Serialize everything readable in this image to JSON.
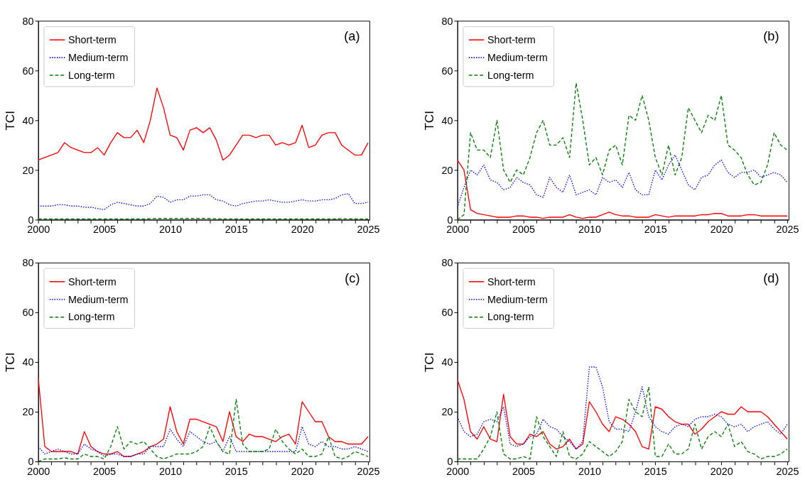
{
  "chart_data": [
    {
      "type": "line",
      "ylabel": "TCI",
      "annotations": [
        "(a)"
      ],
      "legend": "top left",
      "grid": false,
      "x": [
        2000,
        2000.5,
        2001,
        2001.5,
        2002,
        2002.5,
        2003,
        2003.5,
        2004,
        2004.5,
        2005,
        2005.5,
        2006,
        2006.5,
        2007,
        2007.5,
        2008,
        2008.5,
        2009,
        2009.5,
        2010,
        2010.5,
        2011,
        2011.5,
        2012,
        2012.5,
        2013,
        2013.5,
        2014,
        2014.5,
        2015,
        2015.5,
        2016,
        2016.5,
        2017,
        2017.5,
        2018,
        2018.5,
        2019,
        2019.5,
        2020,
        2020.5,
        2021,
        2021.5,
        2022,
        2022.5,
        2023,
        2023.5,
        2024,
        2024.5,
        2025
      ],
      "xlim": [
        2000,
        2025.1
      ],
      "xticks": [
        2000,
        {
          "value": 2001,
          "label": null
        },
        {
          "value": 2002,
          "label": null
        },
        {
          "value": 2003,
          "label": null
        },
        {
          "value": 2004,
          "label": null
        },
        2005,
        {
          "value": 2006,
          "label": null
        },
        {
          "value": 2007,
          "label": null
        },
        {
          "value": 2008,
          "label": null
        },
        {
          "value": 2009,
          "label": null
        },
        2010,
        {
          "value": 2011,
          "label": null
        },
        {
          "value": 2012,
          "label": null
        },
        {
          "value": 2013,
          "label": null
        },
        {
          "value": 2014,
          "label": null
        },
        2015,
        {
          "value": 2016,
          "label": null
        },
        {
          "value": 2017,
          "label": null
        },
        {
          "value": 2018,
          "label": null
        },
        {
          "value": 2019,
          "label": null
        },
        2020,
        {
          "value": 2021,
          "label": null
        },
        {
          "value": 2022,
          "label": null
        },
        {
          "value": 2023,
          "label": null
        },
        {
          "value": 2024,
          "label": null
        },
        2025
      ],
      "ylim": [
        0,
        80
      ],
      "yticks": [
        0,
        20,
        40,
        60,
        80
      ],
      "series": [
        {
          "name": "Short-term",
          "color": "#ff0000",
          "line_style": "solid",
          "values": [
            24,
            25,
            26,
            27,
            31,
            29,
            28,
            27,
            27,
            29,
            26,
            31,
            35,
            33,
            33,
            36,
            31,
            40,
            53,
            45,
            34,
            33,
            28,
            36,
            37,
            35,
            37,
            32,
            24,
            26,
            30,
            34,
            34,
            33,
            34,
            34,
            30,
            31,
            30,
            31,
            38,
            29,
            30,
            34,
            35,
            35,
            30,
            28,
            26,
            26,
            31
          ]
        },
        {
          "name": "Medium-term",
          "color": "#0000ff",
          "line_style": "dotted",
          "values": [
            5.5,
            5.5,
            5.5,
            6,
            6,
            5.5,
            5.5,
            5,
            5,
            4.5,
            4,
            6,
            7,
            6.5,
            6,
            5.5,
            5.5,
            6.5,
            9.5,
            9,
            7,
            8,
            8,
            9.5,
            9.5,
            10,
            10,
            8,
            7.5,
            6,
            5.5,
            6.5,
            7,
            7.5,
            7.5,
            8,
            7.5,
            7,
            7,
            7.5,
            8,
            7.5,
            7.5,
            8,
            8,
            8.5,
            10,
            10.5,
            6.5,
            6.5,
            7
          ]
        },
        {
          "name": "Long-term",
          "color": "#008000",
          "line_style": "dashed",
          "values": [
            0.3,
            0.3,
            0.3,
            0.3,
            0.3,
            0.3,
            0.3,
            0.3,
            0.3,
            0.3,
            0.3,
            0.3,
            0.3,
            0.3,
            0.3,
            0.3,
            0.3,
            0.4,
            0.5,
            0.5,
            0.5,
            0.5,
            0.5,
            0.5,
            0.5,
            0.5,
            0.5,
            0.4,
            0.3,
            0.3,
            0.3,
            0.3,
            0.3,
            0.3,
            0.3,
            0.3,
            0.3,
            0.3,
            0.3,
            0.3,
            0.3,
            0.3,
            0.3,
            0.3,
            0.3,
            0.3,
            0.4,
            0.4,
            0.3,
            0.3,
            0.3
          ]
        }
      ]
    },
    {
      "type": "line",
      "ylabel": "TCI",
      "annotations": [
        "(b)"
      ],
      "legend": "top left",
      "grid": false,
      "x": [
        2000,
        2000.5,
        2001,
        2001.5,
        2002,
        2002.5,
        2003,
        2003.5,
        2004,
        2004.5,
        2005,
        2005.5,
        2006,
        2006.5,
        2007,
        2007.5,
        2008,
        2008.5,
        2009,
        2009.5,
        2010,
        2010.5,
        2011,
        2011.5,
        2012,
        2012.5,
        2013,
        2013.5,
        2014,
        2014.5,
        2015,
        2015.5,
        2016,
        2016.5,
        2017,
        2017.5,
        2018,
        2018.5,
        2019,
        2019.5,
        2020,
        2020.5,
        2021,
        2021.5,
        2022,
        2022.5,
        2023,
        2023.5,
        2024,
        2024.5,
        2025
      ],
      "xlim": [
        2000,
        2025.1
      ],
      "xticks": [
        2000,
        {
          "value": 2001,
          "label": null
        },
        {
          "value": 2002,
          "label": null
        },
        {
          "value": 2003,
          "label": null
        },
        {
          "value": 2004,
          "label": null
        },
        2005,
        {
          "value": 2006,
          "label": null
        },
        {
          "value": 2007,
          "label": null
        },
        {
          "value": 2008,
          "label": null
        },
        {
          "value": 2009,
          "label": null
        },
        2010,
        {
          "value": 2011,
          "label": null
        },
        {
          "value": 2012,
          "label": null
        },
        {
          "value": 2013,
          "label": null
        },
        {
          "value": 2014,
          "label": null
        },
        2015,
        {
          "value": 2016,
          "label": null
        },
        {
          "value": 2017,
          "label": null
        },
        {
          "value": 2018,
          "label": null
        },
        {
          "value": 2019,
          "label": null
        },
        2020,
        {
          "value": 2021,
          "label": null
        },
        {
          "value": 2022,
          "label": null
        },
        {
          "value": 2023,
          "label": null
        },
        {
          "value": 2024,
          "label": null
        },
        2025
      ],
      "ylim": [
        0,
        80
      ],
      "yticks": [
        0,
        20,
        40,
        60,
        80
      ],
      "series": [
        {
          "name": "Short-term",
          "color": "#ff0000",
          "line_style": "solid",
          "values": [
            24,
            20,
            4,
            2.5,
            2,
            1.5,
            1,
            1,
            1,
            1.5,
            1.5,
            1,
            1,
            0.5,
            1,
            1,
            1,
            2,
            1,
            0.5,
            1,
            1,
            2,
            3,
            2,
            1.5,
            1.5,
            1,
            1,
            1,
            2,
            1.5,
            1,
            1.5,
            1.5,
            1.5,
            1.5,
            2,
            2,
            2.5,
            2.5,
            1.5,
            1.5,
            1.5,
            2,
            2,
            1.5,
            1.5,
            1.5,
            1.5,
            1.5
          ]
        },
        {
          "name": "Medium-term",
          "color": "#0000ff",
          "line_style": "dotted",
          "values": [
            5,
            13,
            20,
            18,
            22,
            16,
            15,
            12,
            13,
            17,
            15,
            14,
            10,
            9,
            17,
            13,
            11,
            18,
            10,
            11,
            12,
            10,
            17,
            15,
            16,
            13,
            19,
            12,
            10,
            10,
            20,
            16,
            22,
            26,
            20,
            14,
            12,
            17,
            18,
            22,
            24,
            19,
            17,
            19,
            19,
            20,
            17,
            18,
            19,
            18,
            15
          ]
        },
        {
          "name": "Long-term",
          "color": "#008000",
          "line_style": "dashed",
          "values": [
            0,
            2,
            35,
            28,
            28,
            25,
            40,
            20,
            15,
            20,
            18,
            25,
            35,
            40,
            30,
            30,
            33,
            25,
            55,
            40,
            22,
            25,
            18,
            28,
            30,
            22,
            42,
            40,
            50,
            40,
            25,
            18,
            30,
            18,
            25,
            45,
            40,
            35,
            42,
            40,
            50,
            30,
            28,
            25,
            18,
            14,
            15,
            22,
            35,
            30,
            28
          ]
        }
      ]
    },
    {
      "type": "line",
      "ylabel": "TCI",
      "annotations": [
        "(c)"
      ],
      "legend": "top left",
      "grid": false,
      "x": [
        2000,
        2000.5,
        2001,
        2001.5,
        2002,
        2002.5,
        2003,
        2003.5,
        2004,
        2004.5,
        2005,
        2005.5,
        2006,
        2006.5,
        2007,
        2007.5,
        2008,
        2008.5,
        2009,
        2009.5,
        2010,
        2010.5,
        2011,
        2011.5,
        2012,
        2012.5,
        2013,
        2013.5,
        2014,
        2014.5,
        2015,
        2015.5,
        2016,
        2016.5,
        2017,
        2017.5,
        2018,
        2018.5,
        2019,
        2019.5,
        2020,
        2020.5,
        2021,
        2021.5,
        2022,
        2022.5,
        2023,
        2023.5,
        2024,
        2024.5,
        2025
      ],
      "xlim": [
        2000,
        2025.1
      ],
      "xticks": [
        2000,
        {
          "value": 2001,
          "label": null
        },
        {
          "value": 2002,
          "label": null
        },
        {
          "value": 2003,
          "label": null
        },
        {
          "value": 2004,
          "label": null
        },
        2005,
        {
          "value": 2006,
          "label": null
        },
        {
          "value": 2007,
          "label": null
        },
        {
          "value": 2008,
          "label": null
        },
        {
          "value": 2009,
          "label": null
        },
        2010,
        {
          "value": 2011,
          "label": null
        },
        {
          "value": 2012,
          "label": null
        },
        {
          "value": 2013,
          "label": null
        },
        {
          "value": 2014,
          "label": null
        },
        2015,
        {
          "value": 2016,
          "label": null
        },
        {
          "value": 2017,
          "label": null
        },
        {
          "value": 2018,
          "label": null
        },
        {
          "value": 2019,
          "label": null
        },
        2020,
        {
          "value": 2021,
          "label": null
        },
        {
          "value": 2022,
          "label": null
        },
        {
          "value": 2023,
          "label": null
        },
        {
          "value": 2024,
          "label": null
        },
        2025
      ],
      "ylim": [
        0,
        80
      ],
      "yticks": [
        0,
        20,
        40,
        60,
        80
      ],
      "series": [
        {
          "name": "Short-term",
          "color": "#ff0000",
          "line_style": "solid",
          "values": [
            34,
            6,
            4,
            4,
            4,
            4,
            3,
            12,
            6,
            4,
            3,
            3,
            4,
            2,
            2,
            3,
            4,
            6,
            7,
            9,
            22,
            12,
            7,
            17,
            17,
            16,
            15,
            14,
            8,
            20,
            10,
            8,
            11,
            10,
            10,
            9,
            8,
            10,
            11,
            7,
            24,
            20,
            16,
            16,
            10,
            8,
            8,
            7,
            7,
            7,
            10
          ]
        },
        {
          "name": "Medium-term",
          "color": "#0000ff",
          "line_style": "dotted",
          "values": [
            6,
            3,
            4,
            5,
            4,
            3,
            3,
            7,
            5,
            4,
            2,
            3,
            3,
            2,
            2,
            3,
            3,
            6,
            6,
            6,
            13,
            9,
            6,
            12,
            10,
            8,
            7,
            8,
            4,
            10,
            4,
            4,
            4,
            4,
            4,
            4,
            4,
            4,
            4,
            4,
            14,
            7,
            6,
            8,
            6,
            6,
            5,
            5,
            6,
            5,
            4
          ]
        },
        {
          "name": "Long-term",
          "color": "#008000",
          "line_style": "dashed",
          "values": [
            0,
            1,
            1,
            1,
            1.5,
            1,
            1,
            3,
            2,
            2,
            1,
            6,
            14,
            5,
            8,
            7,
            8,
            5,
            2,
            1,
            2,
            3,
            3,
            3,
            4,
            6,
            14,
            8,
            4,
            3,
            25,
            7,
            4,
            4,
            4,
            5,
            13,
            8,
            5,
            3,
            5,
            2,
            2,
            3,
            10,
            2,
            1,
            2,
            4,
            3,
            2
          ]
        }
      ]
    },
    {
      "type": "line",
      "ylabel": "TCI",
      "annotations": [
        "(d)"
      ],
      "legend": "top left",
      "grid": false,
      "x": [
        2000,
        2000.5,
        2001,
        2001.5,
        2002,
        2002.5,
        2003,
        2003.5,
        2004,
        2004.5,
        2005,
        2005.5,
        2006,
        2006.5,
        2007,
        2007.5,
        2008,
        2008.5,
        2009,
        2009.5,
        2010,
        2010.5,
        2011,
        2011.5,
        2012,
        2012.5,
        2013,
        2013.5,
        2014,
        2014.5,
        2015,
        2015.5,
        2016,
        2016.5,
        2017,
        2017.5,
        2018,
        2018.5,
        2019,
        2019.5,
        2020,
        2020.5,
        2021,
        2021.5,
        2022,
        2022.5,
        2023,
        2023.5,
        2024,
        2024.5,
        2025
      ],
      "xlim": [
        2000,
        2025.1
      ],
      "xticks": [
        2000,
        {
          "value": 2001,
          "label": null
        },
        {
          "value": 2002,
          "label": null
        },
        {
          "value": 2003,
          "label": null
        },
        {
          "value": 2004,
          "label": null
        },
        2005,
        {
          "value": 2006,
          "label": null
        },
        {
          "value": 2007,
          "label": null
        },
        {
          "value": 2008,
          "label": null
        },
        {
          "value": 2009,
          "label": null
        },
        2010,
        {
          "value": 2011,
          "label": null
        },
        {
          "value": 2012,
          "label": null
        },
        {
          "value": 2013,
          "label": null
        },
        {
          "value": 2014,
          "label": null
        },
        2015,
        {
          "value": 2016,
          "label": null
        },
        {
          "value": 2017,
          "label": null
        },
        {
          "value": 2018,
          "label": null
        },
        {
          "value": 2019,
          "label": null
        },
        2020,
        {
          "value": 2021,
          "label": null
        },
        {
          "value": 2022,
          "label": null
        },
        {
          "value": 2023,
          "label": null
        },
        {
          "value": 2024,
          "label": null
        },
        2025
      ],
      "ylim": [
        0,
        80
      ],
      "yticks": [
        0,
        20,
        40,
        60,
        80
      ],
      "series": [
        {
          "name": "Short-term",
          "color": "#ff0000",
          "line_style": "solid",
          "values": [
            33,
            25,
            12,
            9,
            14,
            9,
            8,
            27,
            10,
            7,
            7,
            11,
            10,
            12,
            7,
            5,
            6,
            9,
            5,
            7,
            24,
            20,
            15,
            12,
            18,
            17,
            15,
            12,
            6,
            5,
            22,
            21,
            18,
            16,
            15,
            15,
            11,
            13,
            16,
            18,
            20,
            19,
            19,
            22,
            20,
            20,
            20,
            18,
            15,
            12,
            9
          ]
        },
        {
          "name": "Medium-term",
          "color": "#0000ff",
          "line_style": "dotted",
          "values": [
            18,
            12,
            10,
            11,
            16,
            17,
            16,
            22,
            7,
            6,
            7,
            10,
            11,
            17,
            14,
            13,
            10,
            8,
            5,
            8,
            38,
            38,
            30,
            16,
            13,
            13,
            12,
            20,
            30,
            18,
            14,
            12,
            11,
            14,
            15,
            14,
            17,
            18,
            18,
            19,
            18,
            15,
            14,
            15,
            12,
            14,
            15,
            16,
            13,
            11,
            15
          ]
        },
        {
          "name": "Long-term",
          "color": "#008000",
          "line_style": "dashed",
          "values": [
            1,
            1,
            1,
            1,
            5,
            10,
            20,
            3,
            1,
            1,
            2,
            1,
            18,
            10,
            6,
            2,
            12,
            2,
            1,
            3,
            8,
            6,
            4,
            2,
            4,
            8,
            25,
            20,
            18,
            30,
            2,
            2,
            7,
            3,
            3,
            5,
            15,
            5,
            10,
            12,
            10,
            15,
            6,
            8,
            4,
            3,
            1,
            2,
            2,
            3,
            5
          ]
        }
      ]
    }
  ]
}
